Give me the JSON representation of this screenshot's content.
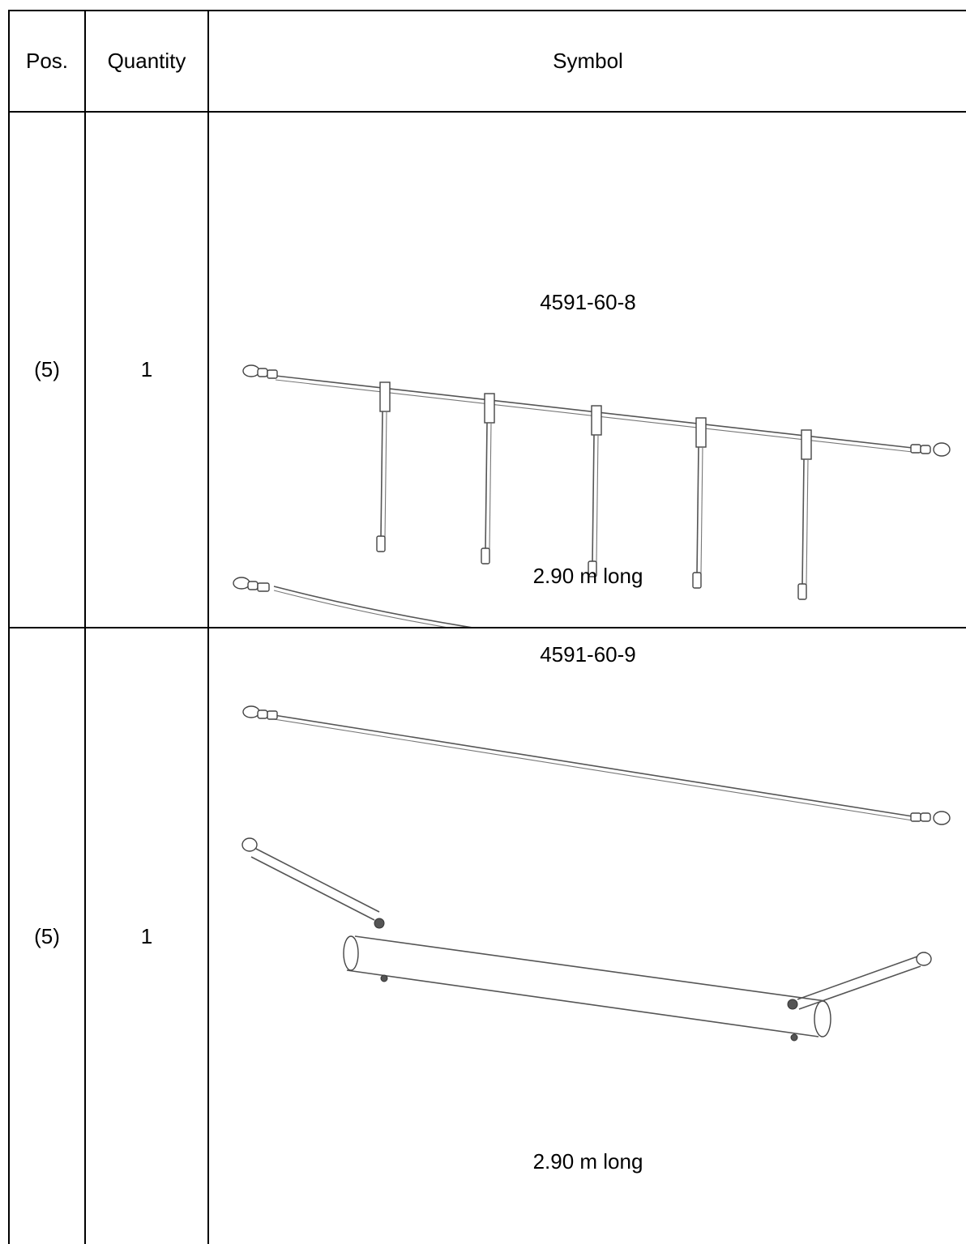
{
  "header": {
    "pos": "Pos.",
    "quantity": "Quantity",
    "symbol": "Symbol"
  },
  "rows": [
    {
      "pos": "(5)",
      "quantity": "1",
      "part_number": "4591-60-8",
      "length_note": "2.90 m long",
      "drawing_icon": "hanger-rail-with-pendants-icon"
    },
    {
      "pos": "(5)",
      "quantity": "1",
      "part_number": "4591-60-9",
      "length_note": "2.90 m long",
      "drawing_icon": "rail-with-crossbar-icon"
    }
  ]
}
